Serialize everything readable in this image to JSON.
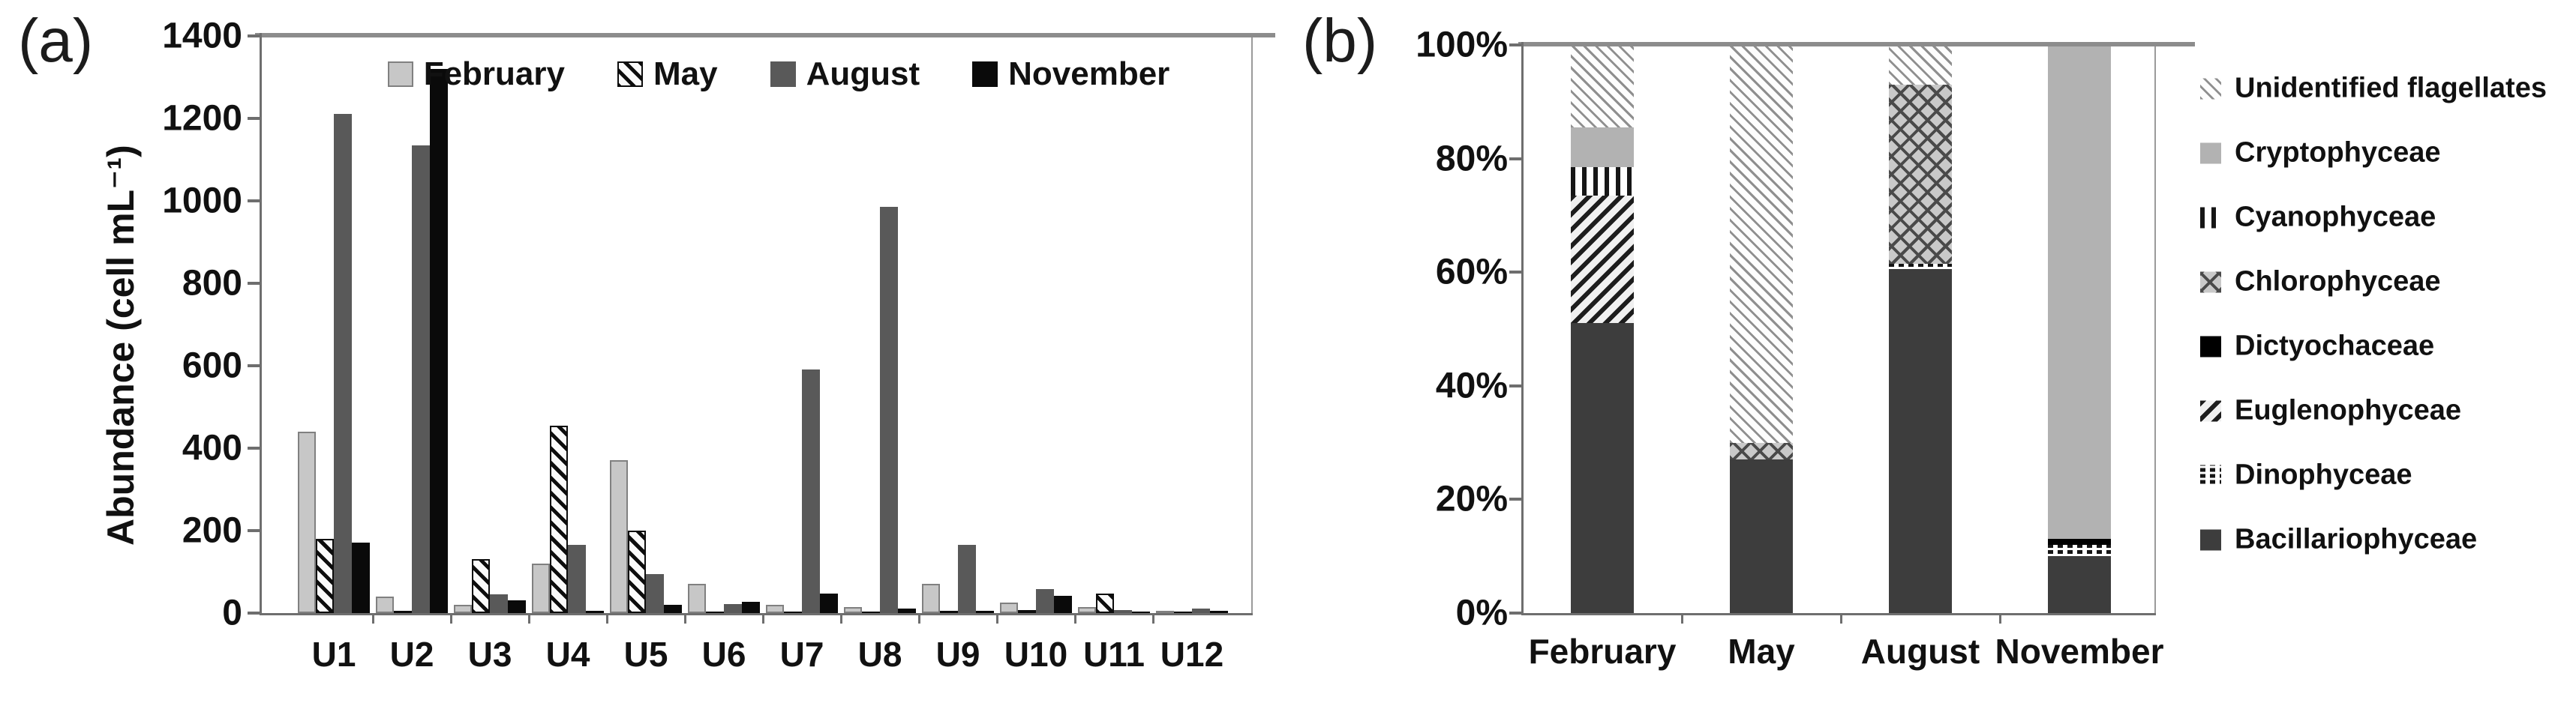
{
  "figure": {
    "panel_a_label": "(a)",
    "panel_b_label": "(b)"
  },
  "chart_data": [
    {
      "id": "abundance-by-station",
      "type": "bar",
      "panel": "a",
      "title": "",
      "xlabel": "",
      "ylabel": "Abundance (cell mL⁻¹)",
      "ylim": [
        0,
        1400
      ],
      "yticks": [
        0,
        200,
        400,
        600,
        800,
        1000,
        1200,
        1400
      ],
      "grid": false,
      "legend_position": "top-inside-horizontal",
      "categories": [
        "U1",
        "U2",
        "U3",
        "U4",
        "U5",
        "U6",
        "U7",
        "U8",
        "U9",
        "U10",
        "U11",
        "U12"
      ],
      "series": [
        {
          "name": "February",
          "pattern": "february",
          "values": [
            440,
            40,
            20,
            120,
            370,
            70,
            20,
            14,
            70,
            25,
            15,
            6
          ]
        },
        {
          "name": "May",
          "pattern": "may",
          "values": [
            180,
            5,
            130,
            455,
            200,
            3,
            3,
            3,
            5,
            8,
            48,
            4
          ]
        },
        {
          "name": "August",
          "pattern": "august",
          "values": [
            1210,
            1135,
            45,
            165,
            95,
            22,
            590,
            985,
            165,
            58,
            8,
            10
          ]
        },
        {
          "name": "November",
          "pattern": "november",
          "values": [
            170,
            1320,
            30,
            5,
            20,
            27,
            48,
            10,
            5,
            42,
            4,
            5
          ]
        }
      ]
    },
    {
      "id": "composition-percent",
      "type": "stacked-bar-100",
      "panel": "b",
      "title": "",
      "xlabel": "",
      "ylabel": "",
      "ylim": [
        0,
        100
      ],
      "yticks": [
        "0%",
        "20%",
        "40%",
        "60%",
        "80%",
        "100%"
      ],
      "ytick_values": [
        0,
        20,
        40,
        60,
        80,
        100
      ],
      "grid": false,
      "legend_position": "right-outside-vertical",
      "categories": [
        "February",
        "May",
        "August",
        "November"
      ],
      "series_stack_bottom_to_top": [
        {
          "name": "Bacillariophyceae",
          "pattern": "bacillariophyceae",
          "values": [
            51,
            27,
            60.5,
            10
          ]
        },
        {
          "name": "Dinophyceae",
          "pattern": "dinophyceae",
          "values": [
            0,
            0,
            1,
            2
          ]
        },
        {
          "name": "Euglenophyceae",
          "pattern": "euglenophyceae",
          "values": [
            22.5,
            0,
            0,
            0
          ]
        },
        {
          "name": "Dictyochaceae",
          "pattern": "dictyochaceae",
          "values": [
            0,
            0,
            0,
            1
          ]
        },
        {
          "name": "Chlorophyceae",
          "pattern": "chlorophyceae",
          "values": [
            0,
            3,
            31.5,
            0
          ]
        },
        {
          "name": "Cyanophyceae",
          "pattern": "cyanophyceae",
          "values": [
            5,
            0,
            0,
            0
          ]
        },
        {
          "name": "Cryptophyceae",
          "pattern": "cryptophyceae",
          "values": [
            7,
            0,
            0,
            87
          ]
        },
        {
          "name": "Unidentified flagellates",
          "pattern": "unidentified-flagellates",
          "values": [
            14.5,
            70,
            7,
            0
          ]
        }
      ],
      "legend_top_to_bottom": [
        "Unidentified flagellates",
        "Cryptophyceae",
        "Cyanophyceae",
        "Chlorophyceae",
        "Dictyochaceae",
        "Euglenophyceae",
        "Dinophyceae",
        "Bacillariophyceae"
      ]
    }
  ],
  "colors": {
    "february_fill": "#c7c7c7",
    "may_hatch": "#0d0d0d",
    "august_fill": "#595959",
    "november_fill": "#0a0a0a",
    "bacillariophyceae_fill": "#3d3d3d",
    "cryptophyceae_fill": "#b2b2b2",
    "dictyochaceae_fill": "#000000",
    "axis_line": "#6e6e6e",
    "top_rule": "#8c8c8c"
  }
}
